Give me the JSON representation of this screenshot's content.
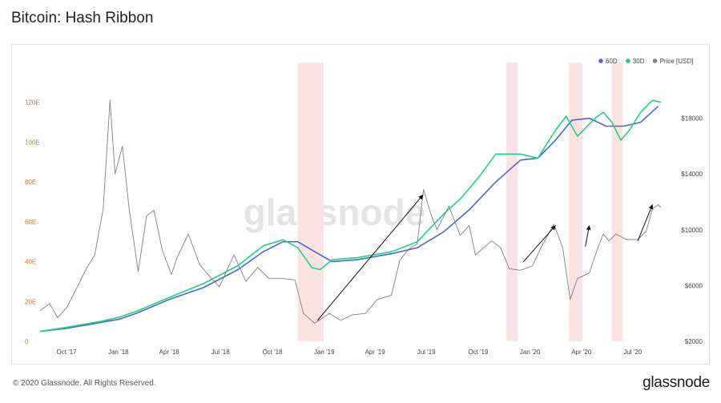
{
  "header": {
    "title": "Bitcoin: Hash Ribbon"
  },
  "footer": {
    "copyright": "© 2020 Glassnode. All Rights Reserved.",
    "brand": "glassnode"
  },
  "watermark": "glassnode",
  "colors": {
    "ma60": "#4a66d6",
    "ma30": "#1fd37f",
    "price": "#808080",
    "capitulation": "#fbe3e2",
    "left_axis_text": "#c87a3a",
    "arrow": "#111111"
  },
  "chart_data": {
    "type": "line",
    "legend_position": "top-right",
    "x_ticks": [
      "Oct '17",
      "Jan '18",
      "Apr '18",
      "Jul '18",
      "Oct '18",
      "Jan '19",
      "Apr '19",
      "Jul '19",
      "Oct '19",
      "Jan '20",
      "Apr '20",
      "Jul '20"
    ],
    "x_range": [
      "2017-08-15",
      "2020-08-20"
    ],
    "y_left": {
      "ticks": [
        "0",
        "20E",
        "40E",
        "60E",
        "80E",
        "100E",
        "120E"
      ],
      "range": [
        0,
        140
      ]
    },
    "y_right": {
      "ticks": [
        "$2000",
        "$6000",
        "$10000",
        "$14000",
        "$18000"
      ],
      "range": [
        2000,
        22000
      ]
    },
    "series": [
      {
        "name": "60D",
        "axis": "left",
        "color_key": "ma60",
        "points": [
          [
            "2017-08-15",
            5
          ],
          [
            "2017-10-01",
            6.5
          ],
          [
            "2017-12-01",
            9.5
          ],
          [
            "2018-01-01",
            11
          ],
          [
            "2018-02-01",
            14
          ],
          [
            "2018-04-01",
            21
          ],
          [
            "2018-06-01",
            27
          ],
          [
            "2018-08-01",
            36
          ],
          [
            "2018-09-15",
            45
          ],
          [
            "2018-10-20",
            50
          ],
          [
            "2018-11-15",
            50
          ],
          [
            "2018-12-15",
            45
          ],
          [
            "2019-01-15",
            40
          ],
          [
            "2019-03-01",
            41
          ],
          [
            "2019-05-01",
            44
          ],
          [
            "2019-06-15",
            47
          ],
          [
            "2019-08-01",
            55
          ],
          [
            "2019-09-15",
            66
          ],
          [
            "2019-11-01",
            80
          ],
          [
            "2019-12-15",
            91
          ],
          [
            "2020-01-15",
            92
          ],
          [
            "2020-02-15",
            101
          ],
          [
            "2020-03-15",
            111
          ],
          [
            "2020-04-15",
            112
          ],
          [
            "2020-05-15",
            108
          ],
          [
            "2020-06-15",
            108
          ],
          [
            "2020-07-15",
            110
          ],
          [
            "2020-08-15",
            118
          ]
        ]
      },
      {
        "name": "30D",
        "axis": "left",
        "color_key": "ma30",
        "points": [
          [
            "2017-08-15",
            5
          ],
          [
            "2017-10-01",
            7
          ],
          [
            "2017-12-01",
            10
          ],
          [
            "2018-01-01",
            12
          ],
          [
            "2018-02-01",
            15
          ],
          [
            "2018-04-01",
            22
          ],
          [
            "2018-06-01",
            29
          ],
          [
            "2018-08-01",
            38
          ],
          [
            "2018-09-15",
            48
          ],
          [
            "2018-10-20",
            51
          ],
          [
            "2018-11-15",
            47
          ],
          [
            "2018-12-10",
            37
          ],
          [
            "2018-12-25",
            36
          ],
          [
            "2019-01-15",
            41
          ],
          [
            "2019-03-01",
            42
          ],
          [
            "2019-05-01",
            45
          ],
          [
            "2019-06-15",
            50
          ],
          [
            "2019-08-01",
            64
          ],
          [
            "2019-09-01",
            72
          ],
          [
            "2019-10-01",
            82
          ],
          [
            "2019-11-01",
            94
          ],
          [
            "2019-12-15",
            94
          ],
          [
            "2020-01-15",
            92
          ],
          [
            "2020-02-15",
            106
          ],
          [
            "2020-03-05",
            113
          ],
          [
            "2020-03-25",
            103
          ],
          [
            "2020-04-25",
            112
          ],
          [
            "2020-05-10",
            115
          ],
          [
            "2020-05-25",
            110
          ],
          [
            "2020-06-10",
            101
          ],
          [
            "2020-06-25",
            106
          ],
          [
            "2020-07-15",
            115
          ],
          [
            "2020-08-05",
            121
          ],
          [
            "2020-08-20",
            120
          ]
        ]
      },
      {
        "name": "Price [USD]",
        "axis": "right",
        "color_key": "price",
        "points": [
          [
            "2017-08-15",
            4200
          ],
          [
            "2017-09-01",
            4700
          ],
          [
            "2017-09-15",
            3700
          ],
          [
            "2017-10-01",
            4400
          ],
          [
            "2017-10-20",
            5900
          ],
          [
            "2017-11-05",
            7200
          ],
          [
            "2017-11-20",
            8200
          ],
          [
            "2017-12-05",
            11500
          ],
          [
            "2017-12-17",
            19300
          ],
          [
            "2017-12-26",
            14000
          ],
          [
            "2018-01-08",
            16000
          ],
          [
            "2018-01-20",
            11500
          ],
          [
            "2018-02-05",
            7000
          ],
          [
            "2018-02-20",
            11000
          ],
          [
            "2018-03-05",
            11400
          ],
          [
            "2018-03-20",
            8500
          ],
          [
            "2018-04-05",
            6800
          ],
          [
            "2018-04-15",
            8000
          ],
          [
            "2018-05-05",
            9700
          ],
          [
            "2018-05-25",
            7500
          ],
          [
            "2018-06-15",
            6500
          ],
          [
            "2018-06-29",
            5900
          ],
          [
            "2018-07-25",
            8200
          ],
          [
            "2018-08-15",
            6300
          ],
          [
            "2018-09-05",
            7300
          ],
          [
            "2018-09-25",
            6500
          ],
          [
            "2018-10-20",
            6500
          ],
          [
            "2018-11-10",
            6400
          ],
          [
            "2018-11-25",
            4000
          ],
          [
            "2018-12-15",
            3300
          ],
          [
            "2019-01-10",
            4000
          ],
          [
            "2019-01-30",
            3500
          ],
          [
            "2019-02-20",
            3900
          ],
          [
            "2019-03-15",
            4000
          ],
          [
            "2019-04-05",
            5000
          ],
          [
            "2019-04-30",
            5300
          ],
          [
            "2019-05-15",
            7800
          ],
          [
            "2019-05-30",
            8600
          ],
          [
            "2019-06-15",
            9000
          ],
          [
            "2019-06-26",
            12900
          ],
          [
            "2019-07-10",
            11000
          ],
          [
            "2019-07-20",
            10000
          ],
          [
            "2019-08-10",
            11700
          ],
          [
            "2019-08-30",
            9600
          ],
          [
            "2019-09-15",
            10300
          ],
          [
            "2019-09-26",
            8200
          ],
          [
            "2019-10-25",
            9200
          ],
          [
            "2019-11-10",
            8700
          ],
          [
            "2019-11-25",
            7200
          ],
          [
            "2019-12-15",
            7100
          ],
          [
            "2020-01-05",
            7400
          ],
          [
            "2020-01-20",
            8700
          ],
          [
            "2020-02-12",
            10400
          ],
          [
            "2020-02-28",
            8700
          ],
          [
            "2020-03-12",
            5000
          ],
          [
            "2020-03-25",
            6500
          ],
          [
            "2020-04-15",
            6900
          ],
          [
            "2020-04-30",
            8700
          ],
          [
            "2020-05-10",
            9700
          ],
          [
            "2020-05-20",
            9200
          ],
          [
            "2020-06-01",
            9700
          ],
          [
            "2020-06-20",
            9300
          ],
          [
            "2020-07-10",
            9300
          ],
          [
            "2020-07-25",
            9900
          ],
          [
            "2020-08-05",
            11500
          ],
          [
            "2020-08-15",
            11800
          ],
          [
            "2020-08-20",
            11600
          ]
        ]
      }
    ],
    "shaded_regions": [
      [
        "2018-11-15",
        "2018-12-31"
      ],
      [
        "2019-11-20",
        "2019-12-10"
      ],
      [
        "2020-03-10",
        "2020-04-03"
      ],
      [
        "2020-05-25",
        "2020-06-13"
      ]
    ],
    "arrows": [
      {
        "axis": "right",
        "from": [
          "2018-12-20",
          3500
        ],
        "to": [
          "2019-06-25",
          12500
        ]
      },
      {
        "axis": "right",
        "from": [
          "2019-12-20",
          7700
        ],
        "to": [
          "2020-02-15",
          10300
        ]
      },
      {
        "axis": "right",
        "from": [
          "2020-04-08",
          8800
        ],
        "to": [
          "2020-04-15",
          10300
        ]
      },
      {
        "axis": "right",
        "from": [
          "2020-07-10",
          9200
        ],
        "to": [
          "2020-08-05",
          11800
        ]
      }
    ]
  }
}
